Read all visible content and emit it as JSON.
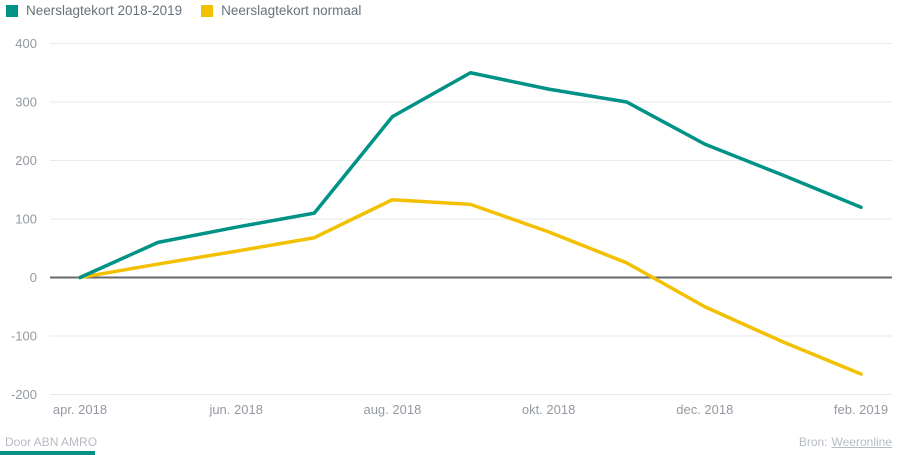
{
  "colors": {
    "teal": "#009286",
    "yellow": "#F3C000",
    "legend_text": "#69727A",
    "axis_text": "#949AA1",
    "grid": "#E9E9E9",
    "zero_line": "#66696C",
    "footer_text": "#B6BBC2",
    "background": "#FFFFFF"
  },
  "chart_data": {
    "type": "line",
    "title": "",
    "xlabel": "",
    "ylabel": "",
    "n_points": 11,
    "x_tick_labels": [
      "apr. 2018",
      "jun. 2018",
      "aug. 2018",
      "okt. 2018",
      "dec. 2018",
      "feb. 2019"
    ],
    "x_points_per_tick": 2,
    "y_ticks": [
      400,
      300,
      200,
      100,
      0,
      -100,
      -200
    ],
    "ylim": [
      -200,
      400
    ],
    "grid": "horizontal",
    "zero_line": true,
    "legend_position": "top-left",
    "series": [
      {
        "name": "Neerslagtekort 2018-2019",
        "color": "#009286",
        "values": [
          0,
          60,
          86,
          110,
          275,
          350,
          322,
          300,
          228,
          175,
          120
        ]
      },
      {
        "name": "Neerslagtekort normaal",
        "color": "#F3C000",
        "values": [
          0,
          23,
          45,
          68,
          133,
          125,
          78,
          25,
          -50,
          -110,
          -165
        ]
      }
    ]
  },
  "footer": {
    "credit": "Door ABN AMRO",
    "source_label": "Bron:",
    "source_link_text": "Weeronline"
  }
}
